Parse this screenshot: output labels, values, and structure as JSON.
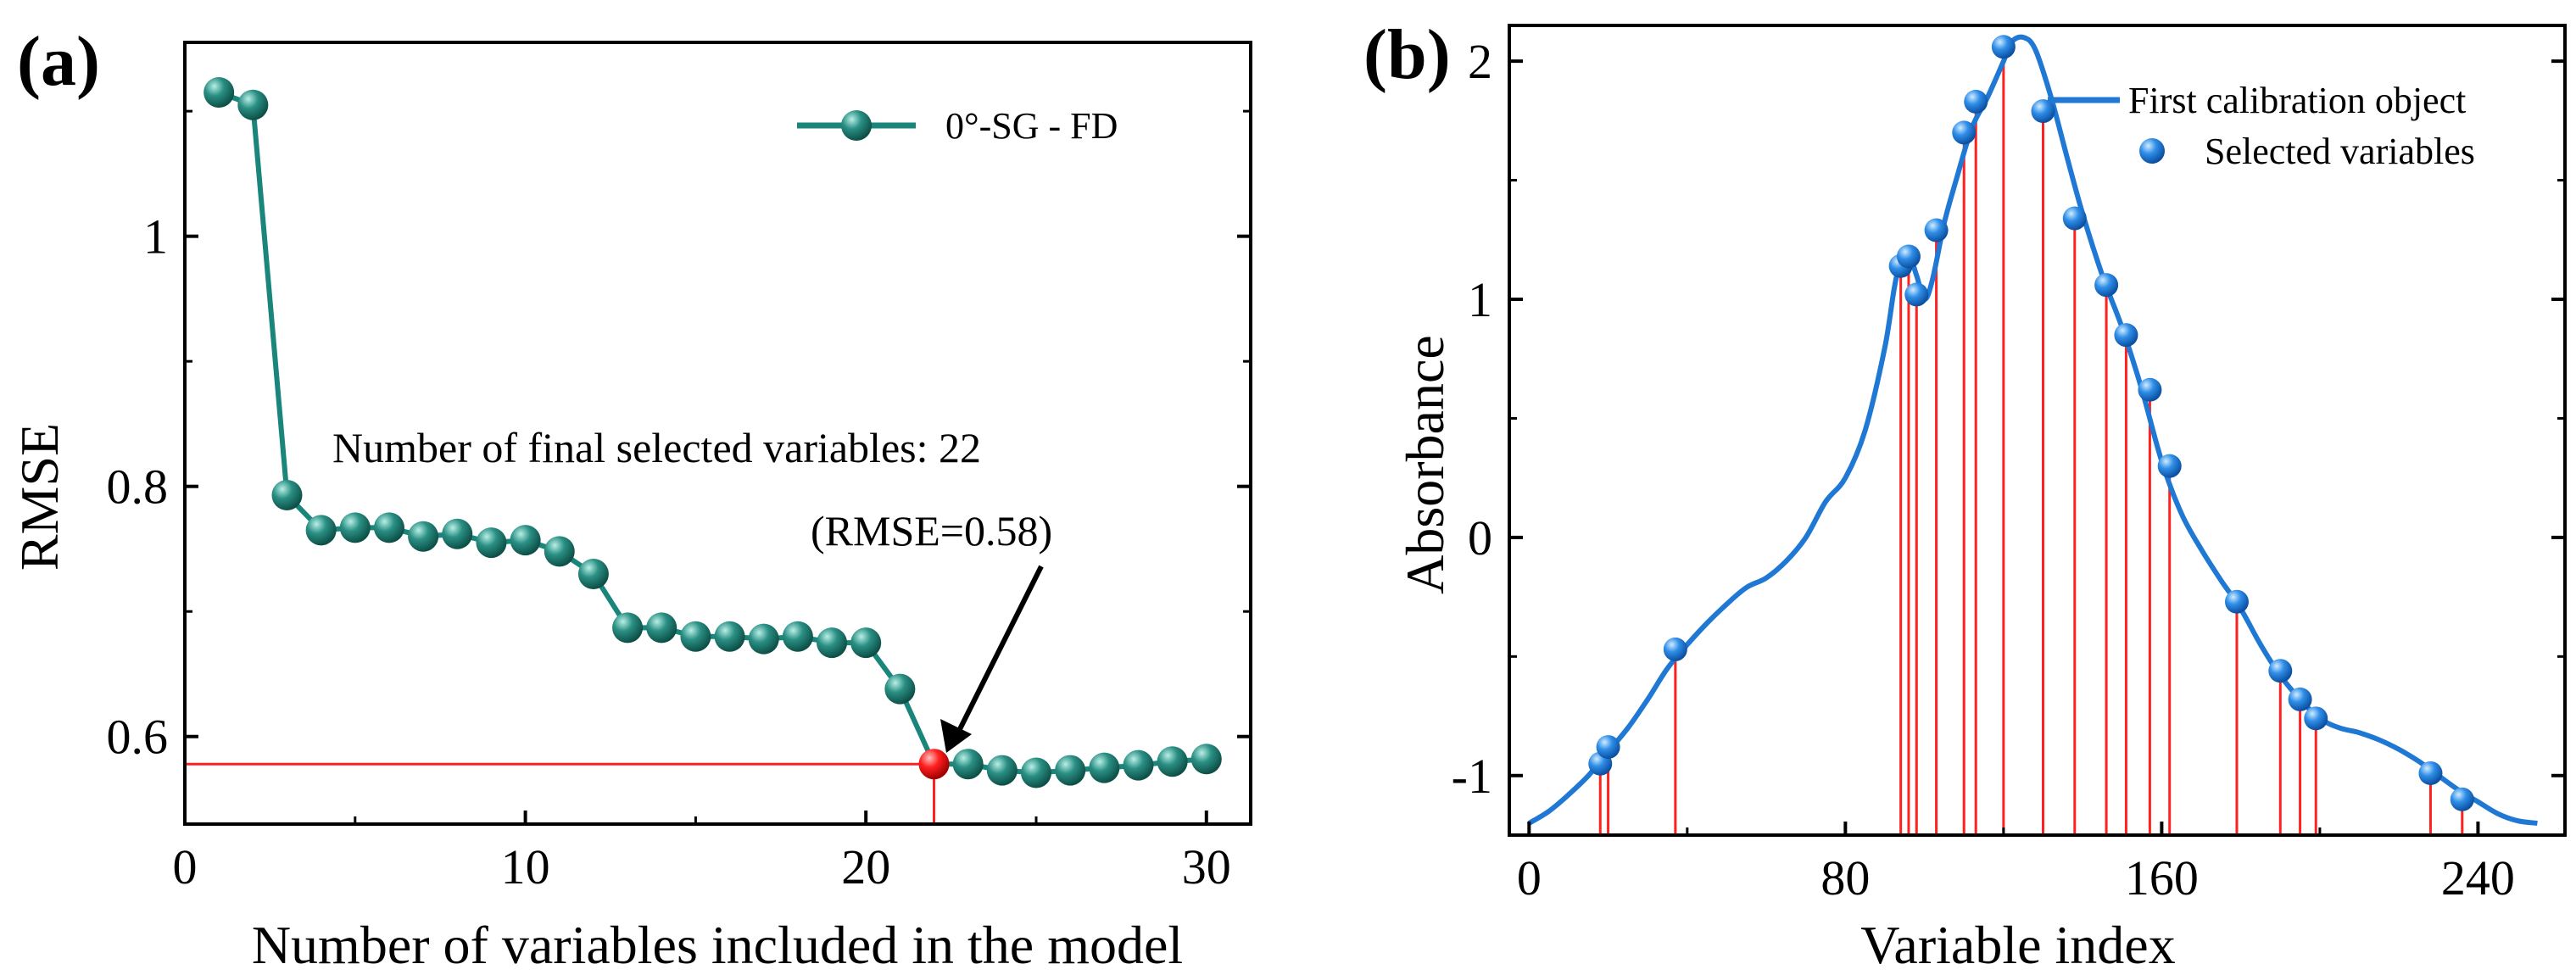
{
  "chart_data": [
    {
      "type": "line",
      "panel_label": "(a)",
      "xlabel": "Number of variables included in the model",
      "ylabel": "RMSE",
      "xlim": [
        0,
        31.3
      ],
      "ylim": [
        0.53,
        1.155
      ],
      "x_ticks": [
        0,
        10,
        20,
        30
      ],
      "y_ticks": [
        0.6,
        0.8,
        1.0
      ],
      "y_tick_labels": [
        "0.6",
        "0.8",
        "1"
      ],
      "grid": false,
      "legend_position": "top-right",
      "series": [
        {
          "name": "0°-SG - FD",
          "color": "#1a857a",
          "marker_color": "#2a8f84",
          "x": [
            1,
            2,
            3,
            4,
            5,
            6,
            7,
            8,
            9,
            10,
            11,
            12,
            13,
            14,
            15,
            16,
            17,
            18,
            19,
            20,
            21,
            22,
            23,
            24,
            25,
            26,
            27,
            28,
            29,
            30
          ],
          "values": [
            1.115,
            1.105,
            0.793,
            0.765,
            0.767,
            0.767,
            0.76,
            0.762,
            0.755,
            0.757,
            0.748,
            0.73,
            0.687,
            0.687,
            0.68,
            0.68,
            0.678,
            0.68,
            0.675,
            0.675,
            0.638,
            0.578,
            0.578,
            0.573,
            0.571,
            0.573,
            0.575,
            0.577,
            0.58,
            0.582
          ]
        }
      ],
      "highlight_point": {
        "x": 22,
        "y": 0.578,
        "color": "#ff2020"
      },
      "annotations": {
        "selected": "Number of final selected variables: 22",
        "rmse": "(RMSE=0.58)"
      }
    },
    {
      "type": "line",
      "panel_label": "(b)",
      "xlabel": "Variable index",
      "ylabel": "Absorbance",
      "xlim": [
        -5,
        262
      ],
      "ylim": [
        -1.25,
        2.15
      ],
      "x_ticks": [
        0,
        80,
        160,
        240
      ],
      "y_ticks": [
        -1,
        0,
        1,
        2
      ],
      "grid": false,
      "legend_position": "top-right",
      "series": [
        {
          "name": "First calibration object",
          "color": "#1f78d4",
          "x": [
            0,
            5,
            10,
            15,
            20,
            25,
            30,
            35,
            40,
            45,
            50,
            55,
            60,
            65,
            70,
            75,
            80,
            85,
            90,
            93,
            96,
            98,
            100,
            102,
            105,
            108,
            112,
            116,
            120,
            122,
            125,
            128,
            132,
            136,
            140,
            145,
            150,
            155,
            160,
            165,
            170,
            175,
            180,
            185,
            190,
            195,
            200,
            205,
            210,
            215,
            220,
            225,
            230,
            235,
            240,
            245,
            250,
            255
          ],
          "values": [
            -1.2,
            -1.15,
            -1.08,
            -1.0,
            -0.9,
            -0.8,
            -0.68,
            -0.55,
            -0.45,
            -0.36,
            -0.28,
            -0.21,
            -0.17,
            -0.1,
            0.0,
            0.15,
            0.25,
            0.45,
            0.8,
            1.1,
            1.18,
            1.1,
            1.0,
            1.08,
            1.32,
            1.5,
            1.72,
            1.85,
            2.0,
            2.08,
            2.1,
            2.05,
            1.85,
            1.6,
            1.36,
            1.1,
            0.88,
            0.62,
            0.32,
            0.1,
            -0.05,
            -0.18,
            -0.3,
            -0.45,
            -0.58,
            -0.68,
            -0.76,
            -0.8,
            -0.82,
            -0.85,
            -0.89,
            -0.94,
            -1.0,
            -1.06,
            -1.11,
            -1.16,
            -1.19,
            -1.2
          ]
        },
        {
          "name": "Selected variables",
          "color": "#1f78d4",
          "stem_color": "#ff2020",
          "x": [
            18,
            20,
            37,
            94,
            96,
            98,
            103,
            110,
            113,
            120,
            130,
            138,
            146,
            151,
            157,
            162,
            179,
            190,
            195,
            199,
            228,
            236
          ],
          "values": [
            -0.95,
            -0.88,
            -0.47,
            1.14,
            1.18,
            1.02,
            1.29,
            1.7,
            1.83,
            2.06,
            1.79,
            1.34,
            1.06,
            0.85,
            0.62,
            0.3,
            -0.27,
            -0.56,
            -0.68,
            -0.76,
            -0.99,
            -1.1
          ]
        }
      ]
    }
  ]
}
